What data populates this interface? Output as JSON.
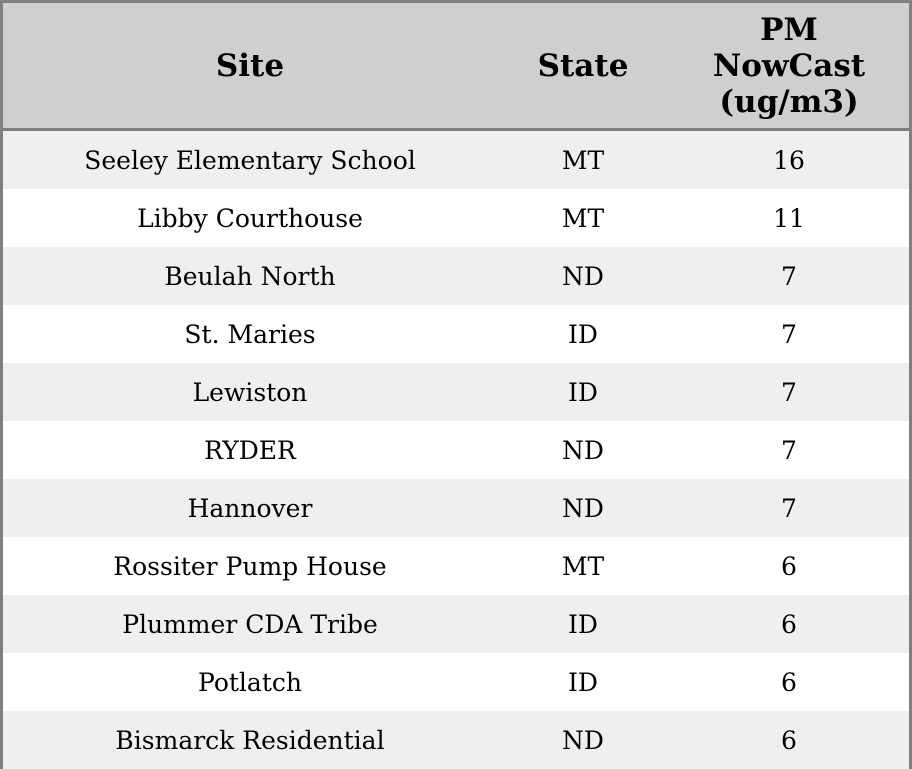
{
  "table": {
    "headers": [
      "Site",
      "State",
      "PM NowCast (ug/m3)"
    ],
    "header_lines": {
      "pm": [
        "PM",
        "NowCast",
        "(ug/m3)"
      ]
    },
    "rows": [
      [
        "Seeley Elementary School",
        "MT",
        "16"
      ],
      [
        "Libby Courthouse",
        "MT",
        "11"
      ],
      [
        "Beulah North",
        "ND",
        "7"
      ],
      [
        "St. Maries",
        "ID",
        "7"
      ],
      [
        "Lewiston",
        "ID",
        "7"
      ],
      [
        "RYDER",
        "ND",
        "7"
      ],
      [
        "Hannover",
        "ND",
        "7"
      ],
      [
        "Rossiter Pump House",
        "MT",
        "6"
      ],
      [
        "Plummer CDA Tribe",
        "ID",
        "6"
      ],
      [
        "Potlatch",
        "ID",
        "6"
      ],
      [
        "Bismarck Residential",
        "ND",
        "6"
      ]
    ],
    "colors": {
      "header_bg": "#cfcfcf",
      "stripe_bg": "#efefef",
      "border": "#808080"
    }
  }
}
